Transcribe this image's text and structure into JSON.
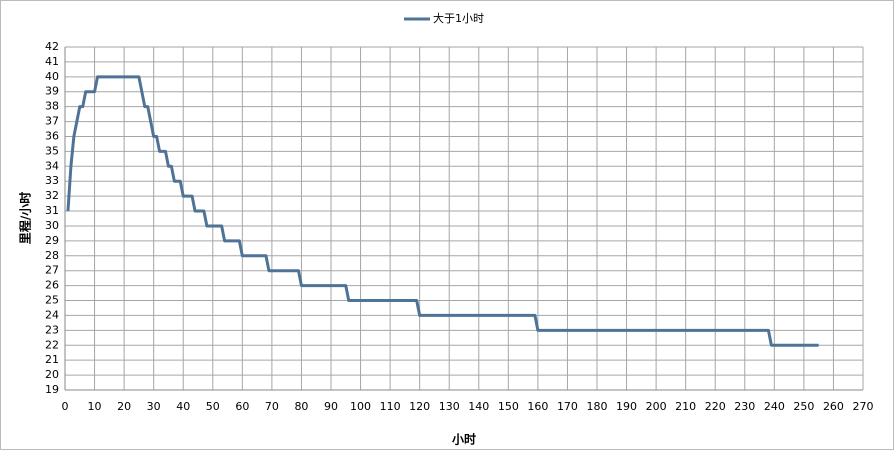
{
  "chart_data": {
    "type": "line",
    "x_label": "小时",
    "y_label": "里程/小时",
    "x": [
      1,
      2,
      3,
      4,
      5,
      6,
      7,
      10,
      11,
      25,
      26,
      27,
      28,
      29,
      30,
      31,
      32,
      34,
      35,
      36,
      37,
      39,
      40,
      43,
      44,
      47,
      48,
      53,
      54,
      59,
      60,
      68,
      69,
      79,
      80,
      95,
      96,
      119,
      120,
      159,
      160,
      238,
      239,
      255
    ],
    "series": [
      {
        "name": "大于1小时",
        "color": "#4e7396",
        "values": [
          31,
          34,
          36,
          37,
          38,
          38,
          39,
          39,
          40,
          40,
          39,
          38,
          38,
          37,
          36,
          36,
          35,
          35,
          34,
          34,
          33,
          33,
          32,
          32,
          31,
          31,
          30,
          30,
          29,
          29,
          28,
          28,
          27,
          27,
          26,
          26,
          25,
          25,
          24,
          24,
          23,
          23,
          22,
          22
        ]
      }
    ],
    "xlim": [
      0,
      270
    ],
    "xticks": [
      0,
      10,
      20,
      30,
      40,
      50,
      60,
      70,
      80,
      90,
      100,
      110,
      120,
      130,
      140,
      150,
      160,
      170,
      180,
      190,
      200,
      210,
      220,
      230,
      240,
      250,
      260,
      270
    ],
    "ylim": [
      19,
      42
    ],
    "yticks": [
      19,
      20,
      21,
      22,
      23,
      24,
      25,
      26,
      27,
      28,
      29,
      30,
      31,
      32,
      33,
      34,
      35,
      36,
      37,
      38,
      39,
      40,
      41,
      42
    ],
    "grid": true,
    "legend": "top"
  }
}
